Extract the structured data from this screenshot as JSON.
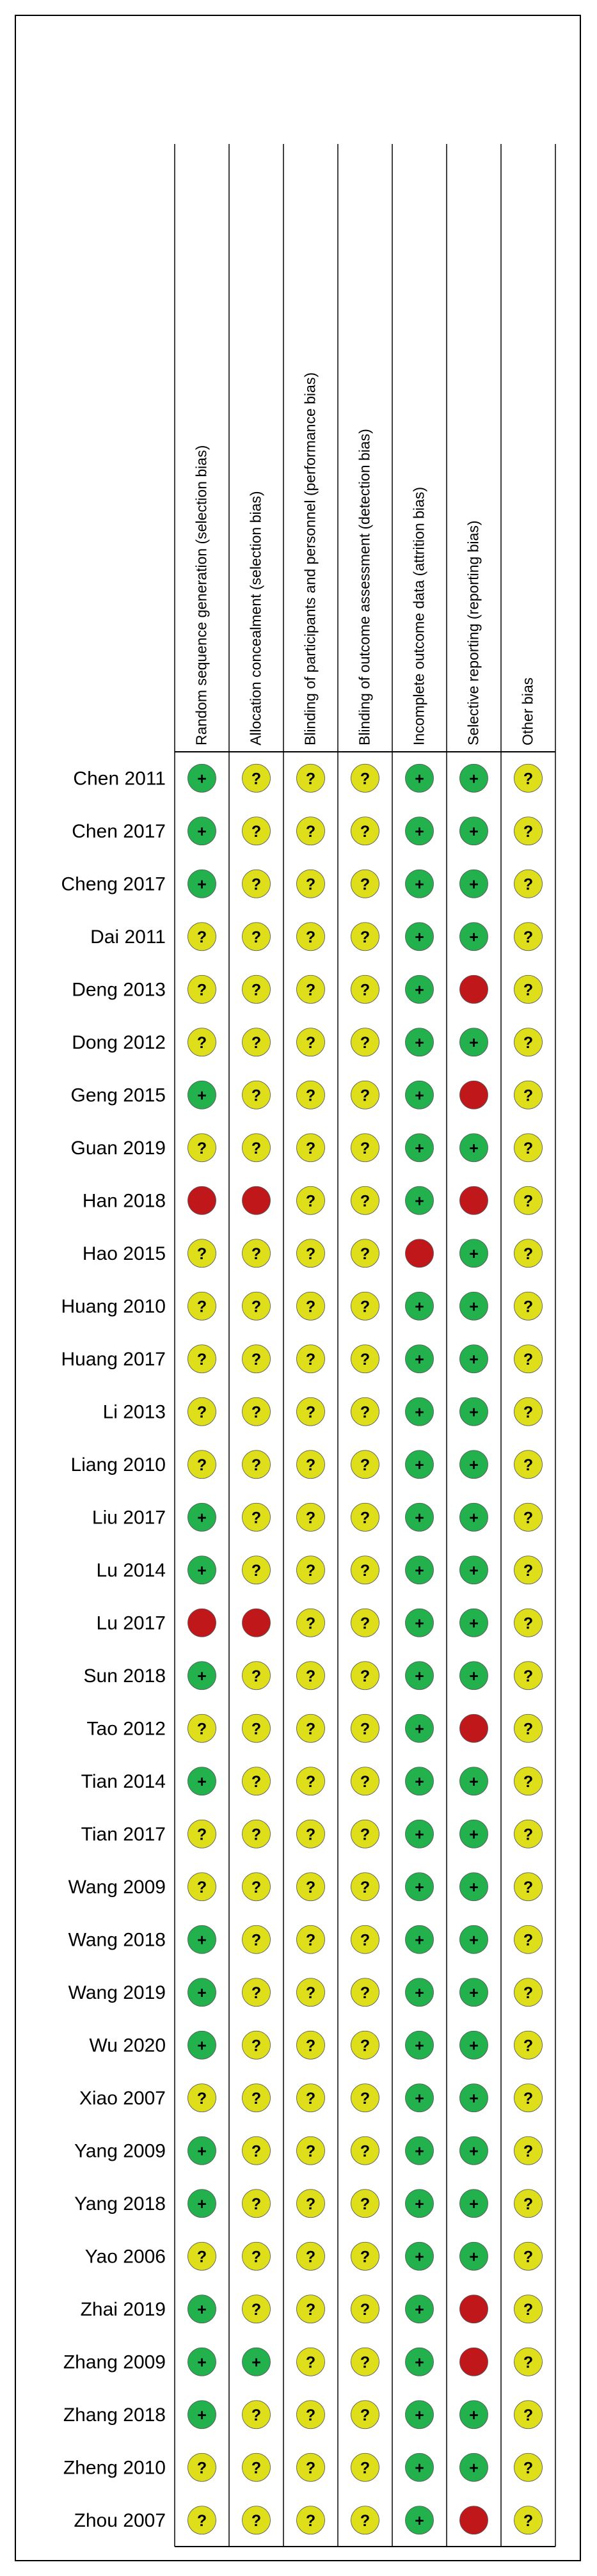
{
  "chart_data": {
    "type": "table",
    "domains": [
      "Random sequence generation (selection bias)",
      "Allocation concealment (selection bias)",
      "Blinding of participants and personnel (performance bias)",
      "Blinding of outcome assessment (detection bias)",
      "Incomplete outcome data (attrition bias)",
      "Selective reporting (reporting bias)",
      "Other bias"
    ],
    "studies": [
      {
        "name": "Chen 2011",
        "ratings": [
          "low",
          "unclear",
          "unclear",
          "unclear",
          "low",
          "low",
          "unclear"
        ]
      },
      {
        "name": "Chen 2017",
        "ratings": [
          "low",
          "unclear",
          "unclear",
          "unclear",
          "low",
          "low",
          "unclear"
        ]
      },
      {
        "name": "Cheng 2017",
        "ratings": [
          "low",
          "unclear",
          "unclear",
          "unclear",
          "low",
          "low",
          "unclear"
        ]
      },
      {
        "name": "Dai 2011",
        "ratings": [
          "unclear",
          "unclear",
          "unclear",
          "unclear",
          "low",
          "low",
          "unclear"
        ]
      },
      {
        "name": "Deng 2013",
        "ratings": [
          "unclear",
          "unclear",
          "unclear",
          "unclear",
          "low",
          "high",
          "unclear"
        ]
      },
      {
        "name": "Dong 2012",
        "ratings": [
          "unclear",
          "unclear",
          "unclear",
          "unclear",
          "low",
          "low",
          "unclear"
        ]
      },
      {
        "name": "Geng 2015",
        "ratings": [
          "low",
          "unclear",
          "unclear",
          "unclear",
          "low",
          "high",
          "unclear"
        ]
      },
      {
        "name": "Guan 2019",
        "ratings": [
          "unclear",
          "unclear",
          "unclear",
          "unclear",
          "low",
          "low",
          "unclear"
        ]
      },
      {
        "name": "Han 2018",
        "ratings": [
          "high",
          "high",
          "unclear",
          "unclear",
          "low",
          "high",
          "unclear"
        ]
      },
      {
        "name": "Hao 2015",
        "ratings": [
          "unclear",
          "unclear",
          "unclear",
          "unclear",
          "high",
          "low",
          "unclear"
        ]
      },
      {
        "name": "Huang 2010",
        "ratings": [
          "unclear",
          "unclear",
          "unclear",
          "unclear",
          "low",
          "low",
          "unclear"
        ]
      },
      {
        "name": "Huang 2017",
        "ratings": [
          "unclear",
          "unclear",
          "unclear",
          "unclear",
          "low",
          "low",
          "unclear"
        ]
      },
      {
        "name": "Li 2013",
        "ratings": [
          "unclear",
          "unclear",
          "unclear",
          "unclear",
          "low",
          "low",
          "unclear"
        ]
      },
      {
        "name": "Liang 2010",
        "ratings": [
          "unclear",
          "unclear",
          "unclear",
          "unclear",
          "low",
          "low",
          "unclear"
        ]
      },
      {
        "name": "Liu 2017",
        "ratings": [
          "low",
          "unclear",
          "unclear",
          "unclear",
          "low",
          "low",
          "unclear"
        ]
      },
      {
        "name": "Lu 2014",
        "ratings": [
          "low",
          "unclear",
          "unclear",
          "unclear",
          "low",
          "low",
          "unclear"
        ]
      },
      {
        "name": "Lu 2017",
        "ratings": [
          "high",
          "high",
          "unclear",
          "unclear",
          "low",
          "low",
          "unclear"
        ]
      },
      {
        "name": "Sun 2018",
        "ratings": [
          "low",
          "unclear",
          "unclear",
          "unclear",
          "low",
          "low",
          "unclear"
        ]
      },
      {
        "name": "Tao 2012",
        "ratings": [
          "unclear",
          "unclear",
          "unclear",
          "unclear",
          "low",
          "high",
          "unclear"
        ]
      },
      {
        "name": "Tian 2014",
        "ratings": [
          "low",
          "unclear",
          "unclear",
          "unclear",
          "low",
          "low",
          "unclear"
        ]
      },
      {
        "name": "Tian 2017",
        "ratings": [
          "unclear",
          "unclear",
          "unclear",
          "unclear",
          "low",
          "low",
          "unclear"
        ]
      },
      {
        "name": "Wang 2009",
        "ratings": [
          "unclear",
          "unclear",
          "unclear",
          "unclear",
          "low",
          "low",
          "unclear"
        ]
      },
      {
        "name": "Wang 2018",
        "ratings": [
          "low",
          "unclear",
          "unclear",
          "unclear",
          "low",
          "low",
          "unclear"
        ]
      },
      {
        "name": "Wang 2019",
        "ratings": [
          "low",
          "unclear",
          "unclear",
          "unclear",
          "low",
          "low",
          "unclear"
        ]
      },
      {
        "name": "Wu 2020",
        "ratings": [
          "low",
          "unclear",
          "unclear",
          "unclear",
          "low",
          "low",
          "unclear"
        ]
      },
      {
        "name": "Xiao 2007",
        "ratings": [
          "unclear",
          "unclear",
          "unclear",
          "unclear",
          "low",
          "low",
          "unclear"
        ]
      },
      {
        "name": "Yang 2009",
        "ratings": [
          "low",
          "unclear",
          "unclear",
          "unclear",
          "low",
          "low",
          "unclear"
        ]
      },
      {
        "name": "Yang 2018",
        "ratings": [
          "low",
          "unclear",
          "unclear",
          "unclear",
          "low",
          "low",
          "unclear"
        ]
      },
      {
        "name": "Yao 2006",
        "ratings": [
          "unclear",
          "unclear",
          "unclear",
          "unclear",
          "low",
          "low",
          "unclear"
        ]
      },
      {
        "name": "Zhai 2019",
        "ratings": [
          "low",
          "unclear",
          "unclear",
          "unclear",
          "low",
          "high",
          "unclear"
        ]
      },
      {
        "name": "Zhang 2009",
        "ratings": [
          "low",
          "low",
          "unclear",
          "unclear",
          "low",
          "high",
          "unclear"
        ]
      },
      {
        "name": "Zhang 2018",
        "ratings": [
          "low",
          "unclear",
          "unclear",
          "unclear",
          "low",
          "low",
          "unclear"
        ]
      },
      {
        "name": "Zheng 2010",
        "ratings": [
          "unclear",
          "unclear",
          "unclear",
          "unclear",
          "low",
          "low",
          "unclear"
        ]
      },
      {
        "name": "Zhou 2007",
        "ratings": [
          "unclear",
          "unclear",
          "unclear",
          "unclear",
          "low",
          "high",
          "unclear"
        ]
      }
    ],
    "rating_styles": {
      "low": {
        "color": "#22b14c",
        "symbol": "+"
      },
      "unclear": {
        "color": "#dede1a",
        "symbol": "?"
      },
      "high": {
        "color": "#c0171b",
        "symbol": ""
      }
    }
  }
}
